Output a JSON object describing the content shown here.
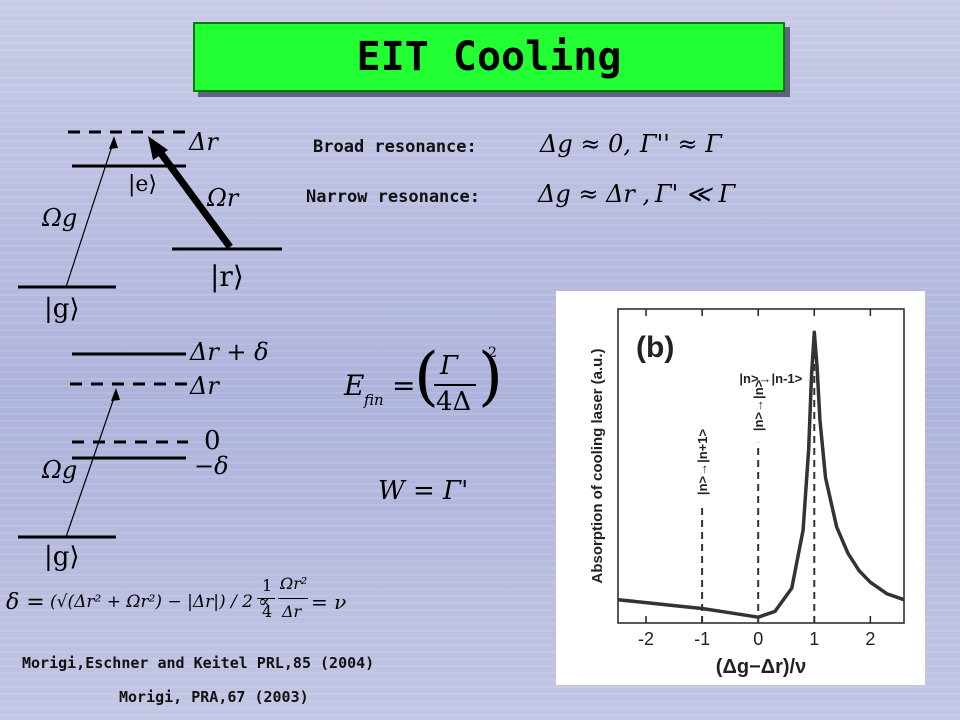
{
  "title": "EIT Cooling",
  "broad": {
    "label": "Broad resonance:",
    "cond1": "Δg ≈ 0,",
    "cond2": "Γ'' ≈ Γ"
  },
  "narrow": {
    "label": "Narrow resonance:",
    "cond1": "Δg ≈ Δr ,",
    "cond2": "Γ' ≪ Γ"
  },
  "diagram_top": {
    "delta_r": "Δr",
    "state_e": "|e⟩",
    "omega_r": "Ωr",
    "omega_g": "Ωg",
    "state_r": "|r⟩",
    "state_g": "|g⟩"
  },
  "diagram_bottom": {
    "delta_r_plus": "Δr + δ",
    "delta_r": "Δr",
    "zero": "0",
    "minus_delta": "−δ",
    "omega_g": "Ωg",
    "state_g": "|g⟩"
  },
  "efin_formula": {
    "lhs": "E",
    "sub": "fin",
    "eq": "=",
    "num": "Γ",
    "den": "4Δ",
    "exp": "2"
  },
  "w_formula": "W = Γ'",
  "delta_formula": {
    "lhs": "δ =",
    "body": "(√(Δr² + Ωr²) − |Δr|) / 2 ∝",
    "frac1_num": "1",
    "frac1_den": "4",
    "frac2_num": "Ωr²",
    "frac2_den": "Δr",
    "rhs": "= ν"
  },
  "refs": [
    "Morigi,Eschner and Keitel PRL,85 (2004)",
    "Morigi, PRA,67 (2003)"
  ],
  "chart_data": {
    "type": "line",
    "panel_label": "(b)",
    "ylabel": "Absorption of cooling laser (a.u.)",
    "xlabel": "(Δg−Δr)/ν",
    "xlim": [
      -2.5,
      2.6
    ],
    "xticks": [
      "-2",
      "-1",
      "0",
      "1",
      "2"
    ],
    "xtick_values": [
      -2,
      -1,
      0,
      1,
      2
    ],
    "annotations": [
      {
        "text": "|n>→|n-1>",
        "x": 1
      },
      {
        "text": "|n>→|n>",
        "x": 0
      },
      {
        "text": "|n>→|n+1>",
        "x": -1
      }
    ],
    "dashed_x": [
      -1,
      0,
      1
    ],
    "series": [
      {
        "x": [
          -2.5,
          -2.0,
          -1.5,
          -1.0,
          -0.5,
          0.0,
          0.3,
          0.6,
          0.8,
          0.9,
          0.95,
          1.0,
          1.05,
          1.1,
          1.2,
          1.4,
          1.6,
          1.8,
          2.0,
          2.3,
          2.6
        ],
        "y": [
          0.08,
          0.07,
          0.06,
          0.05,
          0.035,
          0.02,
          0.04,
          0.12,
          0.32,
          0.6,
          0.85,
          1.0,
          0.88,
          0.7,
          0.5,
          0.33,
          0.24,
          0.18,
          0.14,
          0.1,
          0.08
        ]
      }
    ]
  },
  "colors": {
    "title_bg": "#22ff33",
    "background": "#b9bde0"
  }
}
